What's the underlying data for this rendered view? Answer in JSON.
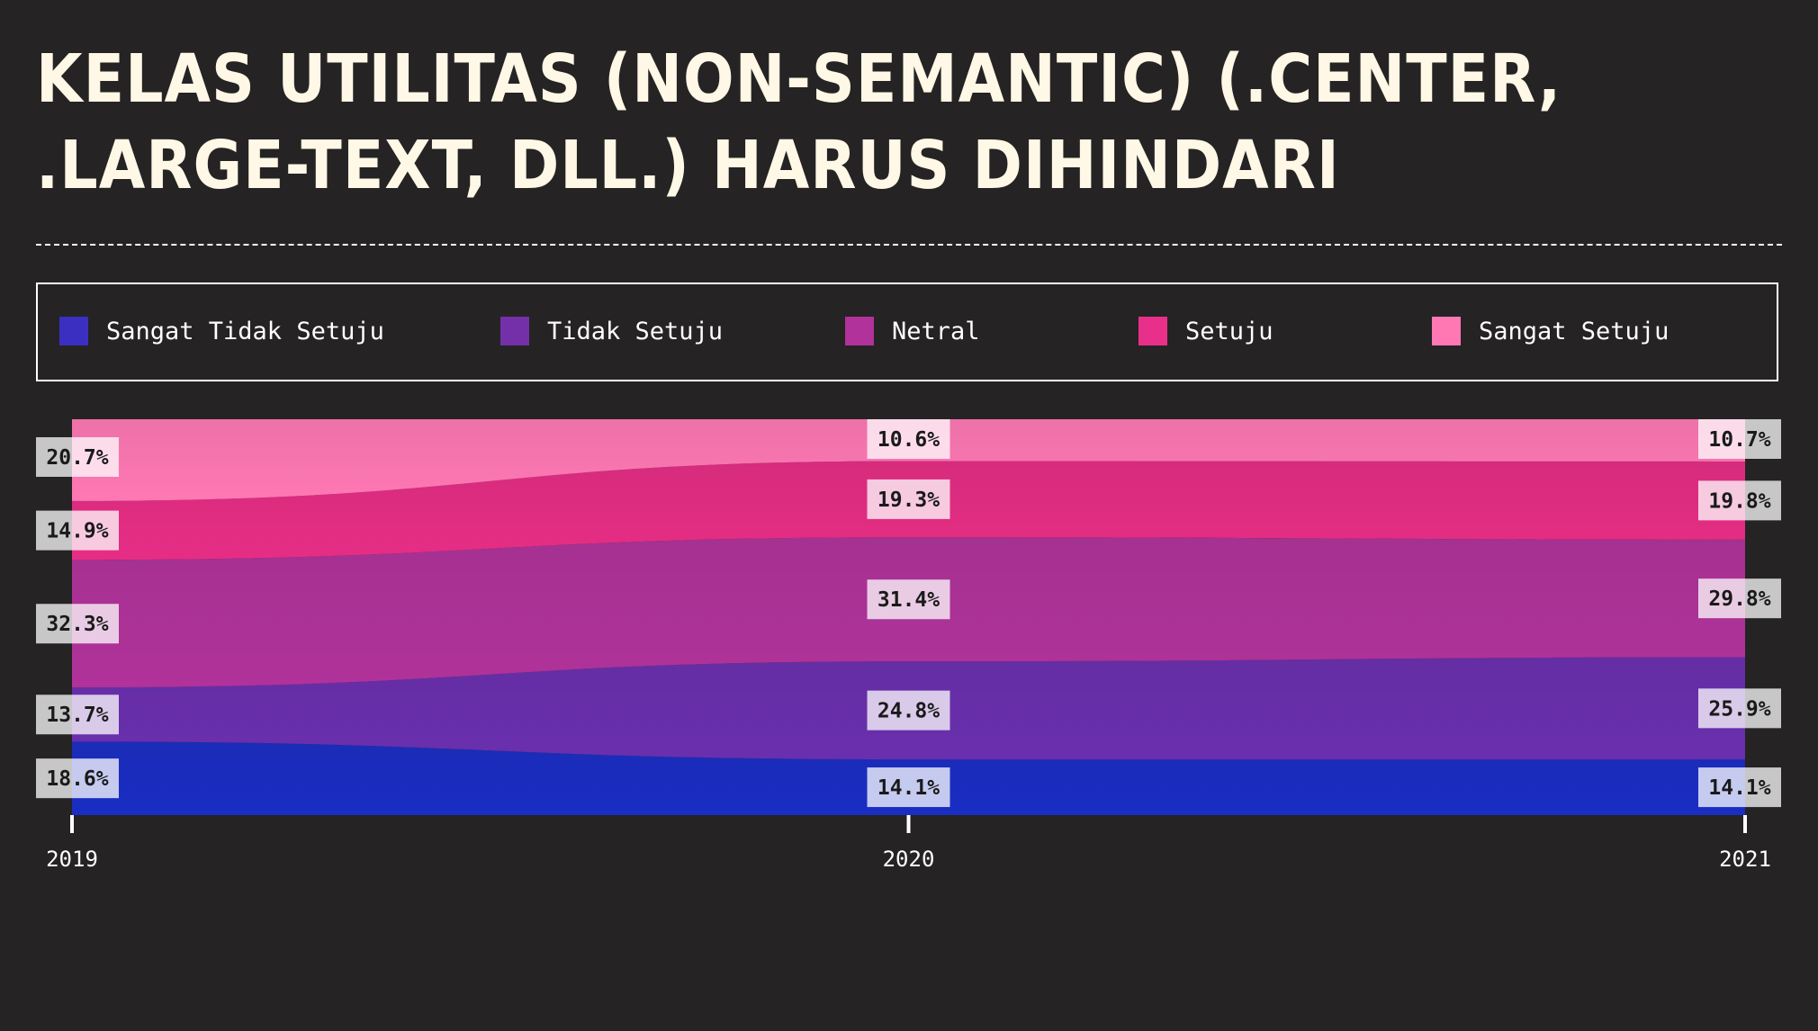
{
  "title": "KELAS UTILITAS (NON-SEMANTIC) (.CENTER, .LARGE-TEXT, DLL.) HARUS DIHINDARI",
  "colors": {
    "background": "#252324",
    "title": "#fff8e6",
    "label_bg": "#ffffff"
  },
  "legend": [
    {
      "label": "Sangat Tidak Setuju",
      "color": "#3a2fc0"
    },
    {
      "label": "Tidak Setuju",
      "color": "#7430a8"
    },
    {
      "label": "Netral",
      "color": "#b0329a"
    },
    {
      "label": "Setuju",
      "color": "#e8308a"
    },
    {
      "label": "Sangat Setuju",
      "color": "#ff78b4"
    }
  ],
  "chart_data": {
    "type": "area",
    "stacked": true,
    "normalized": true,
    "x": [
      "2019",
      "2020",
      "2021"
    ],
    "series": [
      {
        "name": "Sangat Tidak Setuju",
        "values": [
          18.6,
          14.1,
          14.1
        ],
        "color": "#1a2dc4"
      },
      {
        "name": "Tidak Setuju",
        "values": [
          13.7,
          24.8,
          25.9
        ],
        "color": "#6a2fae"
      },
      {
        "name": "Netral",
        "values": [
          32.3,
          31.4,
          29.8
        ],
        "color": "#b0329a"
      },
      {
        "name": "Setuju",
        "values": [
          14.9,
          19.3,
          19.8
        ],
        "color": "#e62d85"
      },
      {
        "name": "Sangat Setuju",
        "values": [
          20.7,
          10.6,
          10.7
        ],
        "color": "#ff78b4"
      }
    ],
    "value_suffix": "%",
    "legend_position": "top",
    "grid": false
  }
}
